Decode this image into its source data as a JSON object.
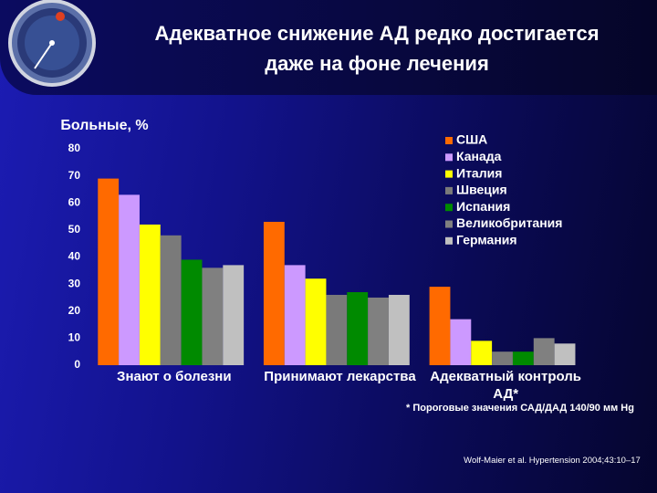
{
  "title": "Адекватное снижение АД редко достигается даже на фоне лечения",
  "chart_data": {
    "type": "bar",
    "y_label": "Больные, %",
    "categories": [
      "Знают о болезни",
      "Принимают лекарства",
      "Адекватный контроль АД*"
    ],
    "series": [
      {
        "name": "США",
        "color": "#ff6a00",
        "values": [
          69,
          53,
          29
        ]
      },
      {
        "name": "Канада",
        "color": "#cc99ff",
        "values": [
          63,
          37,
          17
        ]
      },
      {
        "name": "Италия",
        "color": "#ffff00",
        "values": [
          52,
          32,
          9
        ]
      },
      {
        "name": "Швеция",
        "color": "#7a7a7a",
        "values": [
          48,
          26,
          5
        ]
      },
      {
        "name": "Испания",
        "color": "#008a00",
        "values": [
          39,
          27,
          5
        ]
      },
      {
        "name": "Великобритания",
        "color": "#808080",
        "values": [
          36,
          25,
          10
        ]
      },
      {
        "name": "Германия",
        "color": "#c0c0c0",
        "values": [
          37,
          26,
          8
        ]
      }
    ],
    "ylim": [
      0,
      80
    ],
    "yticks": [
      0,
      10,
      20,
      30,
      40,
      50,
      60,
      70,
      80
    ],
    "grid": false
  },
  "footnote": "* Пороговые значения САД/ДАД 140/90 мм Hg",
  "source": "Wolf-Maier et al. Hypertension 2004;43:10–17"
}
